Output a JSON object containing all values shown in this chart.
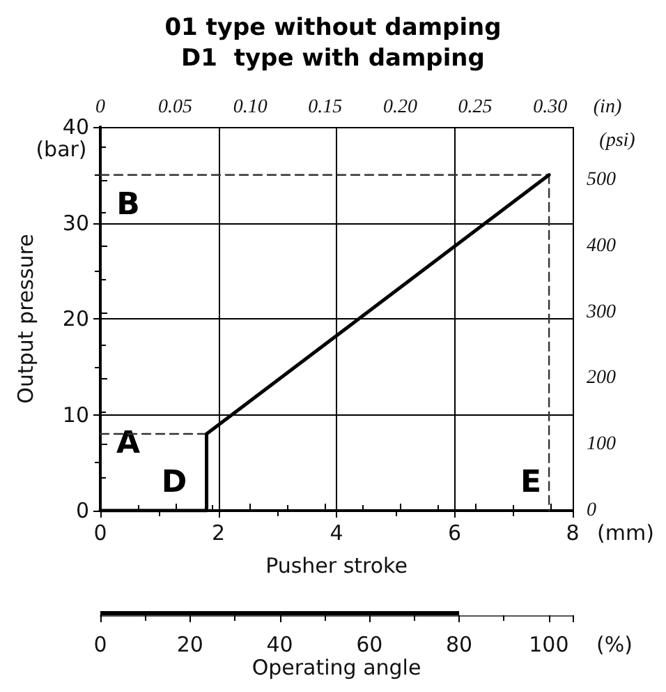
{
  "chart_data": [
    {
      "type": "line",
      "title": "01 type without damping",
      "subtitle": "D1  type with damping",
      "xlabel": "Pusher stroke",
      "ylabel": "Output pressure",
      "xlim": [
        0,
        8
      ],
      "xticks": [
        0,
        {
          "value": 1,
          "label": null
        },
        2,
        {
          "value": 3,
          "label": null
        },
        4,
        {
          "value": 5,
          "label": null
        },
        6,
        {
          "value": 7,
          "label": null
        },
        8
      ],
      "ylim": [
        0,
        40
      ],
      "yticks": [
        0,
        {
          "value": 5,
          "label": null
        },
        10,
        {
          "value": 15,
          "label": null
        },
        20,
        {
          "value": 25,
          "label": null
        },
        30,
        {
          "value": 35,
          "label": null
        },
        40
      ],
      "x2lim": [
        0,
        0.315
      ],
      "x2ticks": [
        0,
        {
          "value": 0.025,
          "label": null
        },
        0.05,
        {
          "value": 0.075,
          "label": null
        },
        {
          "value": 0.1,
          "label": "0.10"
        },
        {
          "value": 0.125,
          "label": null
        },
        0.15,
        {
          "value": 0.175,
          "label": null
        },
        {
          "value": 0.2,
          "label": "0.20"
        },
        {
          "value": 0.225,
          "label": null
        },
        0.25,
        {
          "value": 0.275,
          "label": null
        },
        {
          "value": 0.3,
          "label": "0.30"
        }
      ],
      "y2lim": [
        0,
        580
      ],
      "y2ticks": [
        0,
        {
          "value": 50,
          "label": null
        },
        100,
        {
          "value": 150,
          "label": null
        },
        200,
        {
          "value": 250,
          "label": null
        },
        300,
        {
          "value": 350,
          "label": null
        },
        400,
        {
          "value": 450,
          "label": null
        },
        500,
        {
          "value": 550,
          "label": null
        }
      ],
      "grid": true,
      "marker": "none",
      "series": [
        {
          "x": [
            0,
            1.8,
            1.8,
            7.6
          ],
          "values": [
            0,
            0,
            8,
            35
          ],
          "color": "#000000",
          "line_style": "solid"
        },
        {
          "x": [
            0,
            7.6
          ],
          "values": [
            35,
            35
          ],
          "color": "#333333",
          "line_style": "dashed"
        },
        {
          "x": [
            0,
            1.8
          ],
          "values": [
            8,
            8
          ],
          "color": "#333333",
          "line_style": "dashed"
        },
        {
          "x": [
            7.6,
            7.6
          ],
          "values": [
            35,
            0
          ],
          "color": "#333333",
          "line_style": "dashed"
        }
      ],
      "annotations": [
        "A",
        "B",
        "D",
        "E",
        "(bar)",
        "(psi)",
        "(in)",
        "(mm)"
      ]
    },
    {
      "type": "bar",
      "orientation": "horizontal",
      "categories": [
        null
      ],
      "values": [
        80
      ],
      "color": "#000000",
      "xlabel": "Operating angle",
      "xlim": [
        0,
        105.3
      ],
      "xticks": [
        0,
        {
          "value": 10,
          "label": null
        },
        20,
        {
          "value": 30,
          "label": null
        },
        40,
        {
          "value": 50,
          "label": null
        },
        60,
        {
          "value": 70,
          "label": null
        },
        80,
        {
          "value": 90,
          "label": null
        },
        100
      ],
      "tick_labels": "x",
      "annotations": [
        "(%)"
      ]
    }
  ]
}
